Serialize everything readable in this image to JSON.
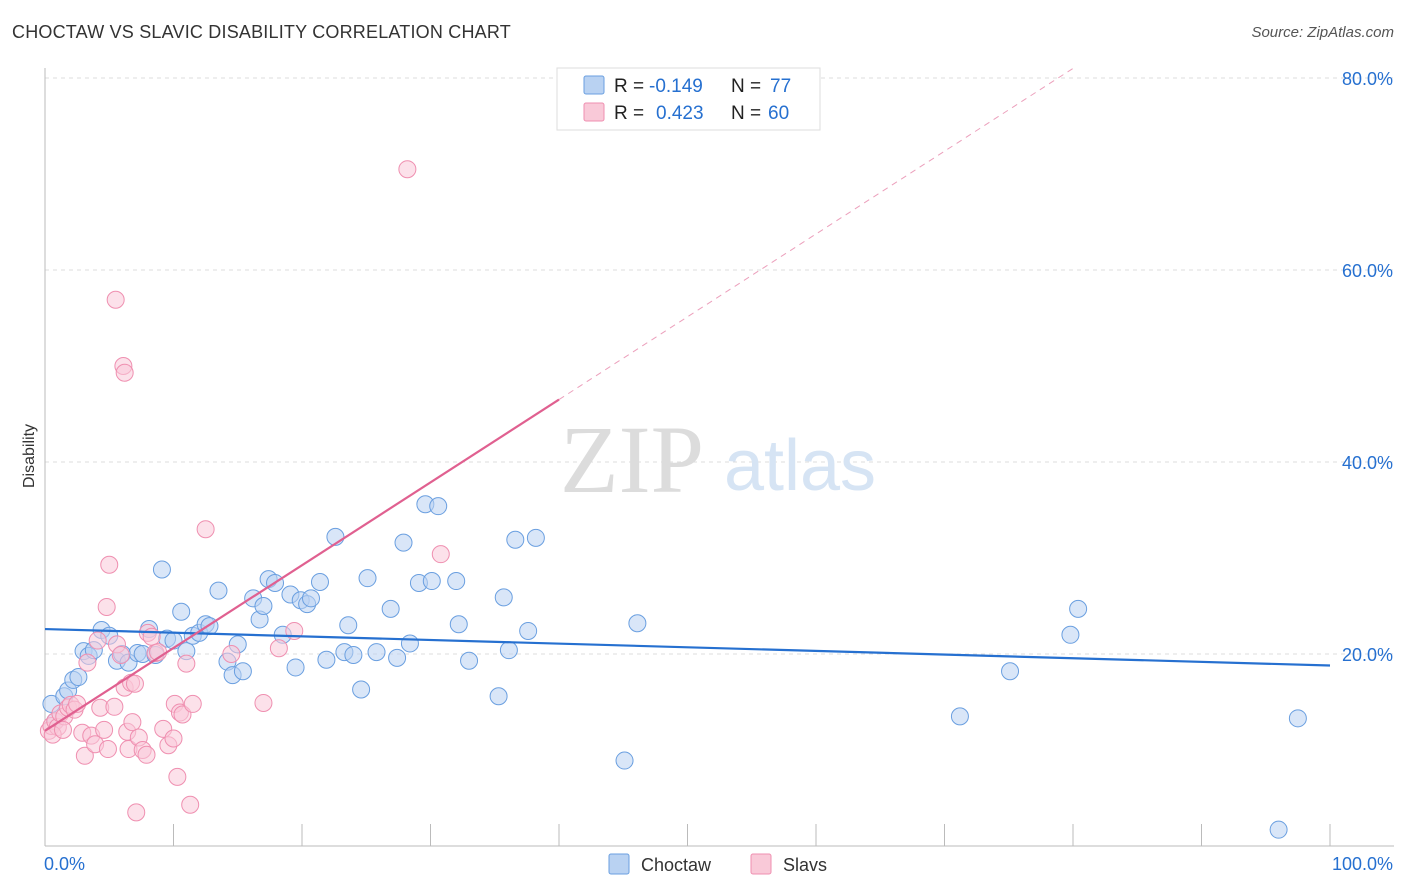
{
  "title": "CHOCTAW VS SLAVIC DISABILITY CORRELATION CHART",
  "source": "Source: ZipAtlas.com",
  "watermark": {
    "zip": "ZIP",
    "atlas": "atlas"
  },
  "chart_data": {
    "type": "scatter",
    "xlabel": "",
    "ylabel": "Disability",
    "xlim": [
      0,
      100
    ],
    "ylim": [
      0,
      80
    ],
    "x_tick_labels": [
      {
        "value": 0,
        "label": "0.0%"
      },
      {
        "value": 100,
        "label": "100.0%"
      }
    ],
    "y_tick_labels": [
      {
        "value": 20,
        "label": "20.0%"
      },
      {
        "value": 40,
        "label": "40.0%"
      },
      {
        "value": 60,
        "label": "60.0%"
      },
      {
        "value": 80,
        "label": "80.0%"
      }
    ],
    "legend_stats": [
      {
        "r_label": "R =",
        "r_value": "-0.149",
        "n_label": "N =",
        "n_value": "77"
      },
      {
        "r_label": "R =",
        "r_value": "0.423",
        "n_label": "N =",
        "n_value": "60"
      }
    ],
    "series": [
      {
        "name": "Choctaw",
        "color": "#6a9fe0",
        "fill": "#b9d2f2",
        "trend": {
          "x0": 0,
          "y0": 22.6,
          "x1": 100,
          "y1": 18.8,
          "color": "#2670d0"
        },
        "points": [
          [
            0.5,
            14.8
          ],
          [
            0.8,
            13.0
          ],
          [
            1.5,
            15.6
          ],
          [
            1.8,
            16.2
          ],
          [
            2.2,
            17.3
          ],
          [
            2.6,
            17.6
          ],
          [
            3.0,
            20.3
          ],
          [
            3.4,
            19.8
          ],
          [
            3.8,
            20.4
          ],
          [
            4.4,
            22.5
          ],
          [
            5.0,
            21.9
          ],
          [
            5.6,
            19.3
          ],
          [
            6.0,
            20.0
          ],
          [
            6.5,
            19.1
          ],
          [
            7.2,
            20.1
          ],
          [
            7.6,
            20.0
          ],
          [
            8.1,
            22.6
          ],
          [
            8.6,
            19.9
          ],
          [
            9.1,
            28.8
          ],
          [
            9.5,
            21.6
          ],
          [
            10.0,
            21.4
          ],
          [
            10.6,
            24.4
          ],
          [
            11.0,
            20.3
          ],
          [
            11.5,
            21.9
          ],
          [
            12.0,
            22.2
          ],
          [
            12.5,
            23.1
          ],
          [
            12.8,
            22.9
          ],
          [
            13.5,
            26.6
          ],
          [
            14.2,
            19.2
          ],
          [
            14.6,
            17.8
          ],
          [
            15.0,
            21.0
          ],
          [
            15.4,
            18.2
          ],
          [
            16.2,
            25.8
          ],
          [
            16.7,
            23.6
          ],
          [
            17.0,
            25.0
          ],
          [
            17.4,
            27.8
          ],
          [
            17.9,
            27.4
          ],
          [
            18.5,
            22.0
          ],
          [
            19.1,
            26.2
          ],
          [
            19.5,
            18.6
          ],
          [
            19.9,
            25.6
          ],
          [
            20.4,
            25.2
          ],
          [
            20.7,
            25.8
          ],
          [
            21.4,
            27.5
          ],
          [
            21.9,
            19.4
          ],
          [
            22.6,
            32.2
          ],
          [
            23.3,
            20.2
          ],
          [
            23.6,
            23.0
          ],
          [
            24.0,
            19.9
          ],
          [
            24.6,
            16.3
          ],
          [
            25.1,
            27.9
          ],
          [
            25.8,
            20.2
          ],
          [
            26.9,
            24.7
          ],
          [
            27.4,
            19.6
          ],
          [
            27.9,
            31.6
          ],
          [
            28.4,
            21.1
          ],
          [
            29.1,
            27.4
          ],
          [
            29.6,
            35.6
          ],
          [
            30.1,
            27.6
          ],
          [
            30.6,
            35.4
          ],
          [
            32.0,
            27.6
          ],
          [
            32.2,
            23.1
          ],
          [
            33.0,
            19.3
          ],
          [
            35.3,
            15.6
          ],
          [
            35.7,
            25.9
          ],
          [
            36.1,
            20.4
          ],
          [
            36.6,
            31.9
          ],
          [
            37.6,
            22.4
          ],
          [
            38.2,
            32.1
          ],
          [
            45.1,
            8.9
          ],
          [
            46.1,
            23.2
          ],
          [
            71.2,
            13.5
          ],
          [
            75.1,
            18.2
          ],
          [
            79.8,
            22.0
          ],
          [
            80.4,
            24.7
          ],
          [
            96.0,
            1.7
          ],
          [
            97.5,
            13.3
          ]
        ]
      },
      {
        "name": "Slavs",
        "color": "#ef8fb0",
        "fill": "#f9c9d8",
        "trend": {
          "x0": 0,
          "y0": 12.0,
          "x1": 40,
          "y1": 46.5,
          "x_dash_end": 80,
          "y_dash_end": 81.0,
          "color": "#e06090"
        },
        "points": [
          [
            0.3,
            12.0
          ],
          [
            0.5,
            12.5
          ],
          [
            0.8,
            13.0
          ],
          [
            1.0,
            12.4
          ],
          [
            1.2,
            13.8
          ],
          [
            1.5,
            13.5
          ],
          [
            1.8,
            14.4
          ],
          [
            2.0,
            14.7
          ],
          [
            2.3,
            14.2
          ],
          [
            2.5,
            14.8
          ],
          [
            2.9,
            11.8
          ],
          [
            3.1,
            9.4
          ],
          [
            3.3,
            19.1
          ],
          [
            3.6,
            11.5
          ],
          [
            3.9,
            10.6
          ],
          [
            4.1,
            21.4
          ],
          [
            4.3,
            14.4
          ],
          [
            4.6,
            12.1
          ],
          [
            4.9,
            10.1
          ],
          [
            4.8,
            24.9
          ],
          [
            5.0,
            29.3
          ],
          [
            5.4,
            14.5
          ],
          [
            5.6,
            21.0
          ],
          [
            5.9,
            19.9
          ],
          [
            6.2,
            16.5
          ],
          [
            6.4,
            11.9
          ],
          [
            6.5,
            10.1
          ],
          [
            6.7,
            17.0
          ],
          [
            6.8,
            12.9
          ],
          [
            7.0,
            16.9
          ],
          [
            7.3,
            11.3
          ],
          [
            7.6,
            10.0
          ],
          [
            7.9,
            9.5
          ],
          [
            8.0,
            22.2
          ],
          [
            8.3,
            21.8
          ],
          [
            8.6,
            20.1
          ],
          [
            8.8,
            20.2
          ],
          [
            9.2,
            12.2
          ],
          [
            9.6,
            10.5
          ],
          [
            10.0,
            11.2
          ],
          [
            10.1,
            14.8
          ],
          [
            10.3,
            7.2
          ],
          [
            10.5,
            13.9
          ],
          [
            10.7,
            13.7
          ],
          [
            11.0,
            19.0
          ],
          [
            11.3,
            4.3
          ],
          [
            11.5,
            14.8
          ],
          [
            12.5,
            33.0
          ],
          [
            14.5,
            20.0
          ],
          [
            17.0,
            14.9
          ],
          [
            18.2,
            20.6
          ],
          [
            19.4,
            22.4
          ],
          [
            30.8,
            30.4
          ],
          [
            28.2,
            70.5
          ],
          [
            5.5,
            56.9
          ],
          [
            6.1,
            50.0
          ],
          [
            6.2,
            49.3
          ],
          [
            7.1,
            3.5
          ],
          [
            0.6,
            11.6
          ],
          [
            1.4,
            12.1
          ]
        ]
      }
    ]
  }
}
